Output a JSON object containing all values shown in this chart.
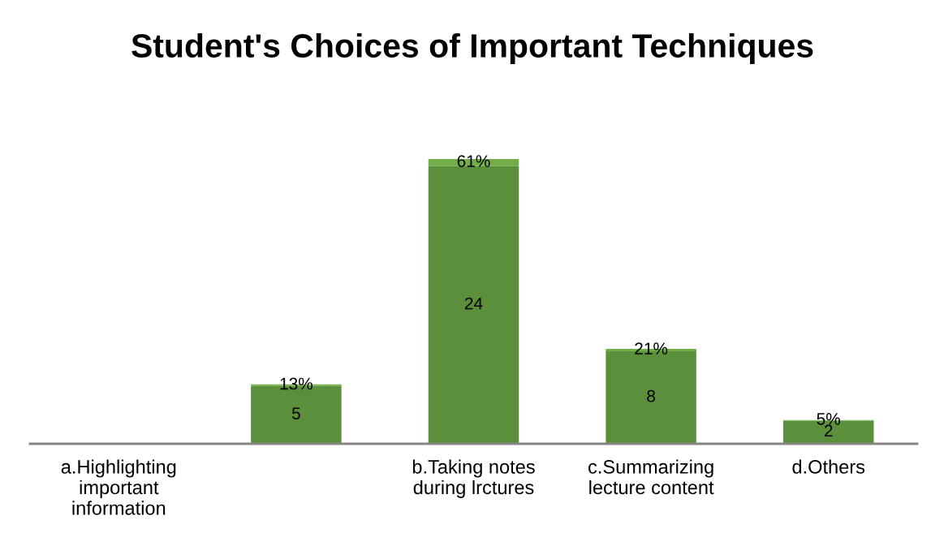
{
  "chart_data": {
    "type": "bar",
    "title": "Student's Choices of Important Techniques",
    "categories": [
      "a.Highlighting important information",
      null,
      "b.Taking notes during lrctures",
      "c.Summarizing lecture content",
      "d.Others"
    ],
    "stacked": true,
    "tick_labels": "x",
    "series": [
      {
        "color": "#5b8f3b",
        "values": [
          null,
          5,
          24,
          8,
          2
        ],
        "value_labels": [
          null,
          "5",
          "24",
          "8",
          "2"
        ]
      },
      {
        "color": "#72ae48",
        "values": [
          null,
          0.13,
          0.61,
          0.21,
          0.05
        ],
        "value_labels": [
          null,
          "13%",
          "61%",
          "21%",
          "5%"
        ]
      }
    ]
  }
}
